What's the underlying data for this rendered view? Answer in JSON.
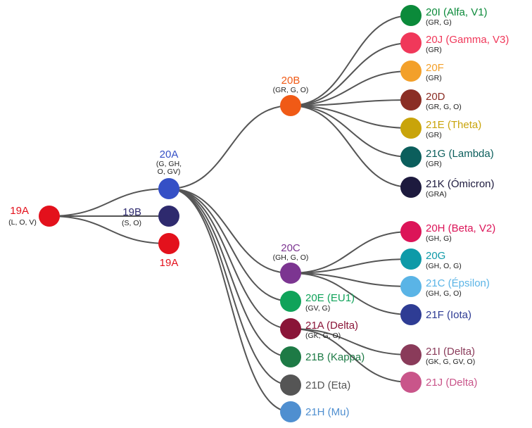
{
  "nodes": [
    {
      "id": "19A",
      "name": "19A",
      "sub": [
        "(L, O, V)"
      ],
      "color": "#e3111c"
    },
    {
      "id": "19A_b",
      "name": "19A",
      "sub": [],
      "color": "#e3111c"
    },
    {
      "id": "19B",
      "name": "19B",
      "sub": [
        "(S, O)"
      ],
      "color": "#2e2a6e"
    },
    {
      "id": "20A",
      "name": "20A",
      "sub": [
        "(G, GH,",
        "O, GV)"
      ],
      "color": "#3550c6"
    },
    {
      "id": "20B",
      "name": "20B",
      "sub": [
        "(GR, G, O)"
      ],
      "color": "#f05a16"
    },
    {
      "id": "20C",
      "name": "20C",
      "sub": [
        "(GH, G, O)"
      ],
      "color": "#7c3591"
    },
    {
      "id": "20I",
      "name": "20I (Alfa, V1)",
      "sub": [
        "(GR, G)"
      ],
      "color": "#0b8a3a"
    },
    {
      "id": "20J",
      "name": "20J (Gamma, V3)",
      "sub": [
        "(GR)"
      ],
      "color": "#f0385a"
    },
    {
      "id": "20F",
      "name": "20F",
      "sub": [
        "(GR)"
      ],
      "color": "#f3a02a"
    },
    {
      "id": "20D",
      "name": "20D",
      "sub": [
        "(GR, G, O)"
      ],
      "color": "#8b2e25"
    },
    {
      "id": "21E",
      "name": "21E (Theta)",
      "sub": [
        "(GR)"
      ],
      "color": "#c9a40a"
    },
    {
      "id": "21G",
      "name": "21G (Lambda)",
      "sub": [
        "(GR)"
      ],
      "color": "#0b5e5c"
    },
    {
      "id": "21K",
      "name": "21K (Ómicron)",
      "sub": [
        "(GRA)"
      ],
      "color": "#1d1a3e"
    },
    {
      "id": "20H",
      "name": "20H (Beta, V2)",
      "sub": [
        "(GH, G)"
      ],
      "color": "#dc1458"
    },
    {
      "id": "20G",
      "name": "20G",
      "sub": [
        "(GH, O, G)"
      ],
      "color": "#0e9aa8"
    },
    {
      "id": "21C",
      "name": "21C (Épsilon)",
      "sub": [
        "(GH, G, O)"
      ],
      "color": "#5ab4e6"
    },
    {
      "id": "21F",
      "name": "21F (Iota)",
      "sub": [],
      "color": "#2e3c94"
    },
    {
      "id": "20E",
      "name": "20E (EU1)",
      "sub": [
        "(GV, G)"
      ],
      "color": "#10a35a"
    },
    {
      "id": "21A",
      "name": "21A (Delta)",
      "sub": [
        "(GK, G, O)"
      ],
      "color": "#8a1538"
    },
    {
      "id": "21I",
      "name": "21I (Delta)",
      "sub": [
        "(GK, G, GV, O)"
      ],
      "color": "#8a3b5a"
    },
    {
      "id": "21J",
      "name": "21J (Delta)",
      "sub": [],
      "color": "#c9558a"
    },
    {
      "id": "21B",
      "name": "21B (Kappa)",
      "sub": [],
      "color": "#1d7a45"
    },
    {
      "id": "21D",
      "name": "21D (Eta)",
      "sub": [],
      "color": "#555555"
    },
    {
      "id": "21H",
      "name": "21H (Mu)",
      "sub": [],
      "color": "#4f8fd0"
    }
  ],
  "edges": [
    [
      "19A",
      "20A"
    ],
    [
      "19A",
      "19B"
    ],
    [
      "19A",
      "19A_b"
    ],
    [
      "20A",
      "20B"
    ],
    [
      "20A",
      "20C"
    ],
    [
      "20A",
      "20E"
    ],
    [
      "20A",
      "21A"
    ],
    [
      "20A",
      "21B"
    ],
    [
      "20A",
      "21D"
    ],
    [
      "20A",
      "21H"
    ],
    [
      "20B",
      "20I"
    ],
    [
      "20B",
      "20J"
    ],
    [
      "20B",
      "20F"
    ],
    [
      "20B",
      "20D"
    ],
    [
      "20B",
      "21E"
    ],
    [
      "20B",
      "21G"
    ],
    [
      "20B",
      "21K"
    ],
    [
      "20C",
      "20H"
    ],
    [
      "20C",
      "20G"
    ],
    [
      "20C",
      "21C"
    ],
    [
      "20C",
      "21F"
    ],
    [
      "21A",
      "21I"
    ],
    [
      "21A",
      "21J"
    ]
  ]
}
